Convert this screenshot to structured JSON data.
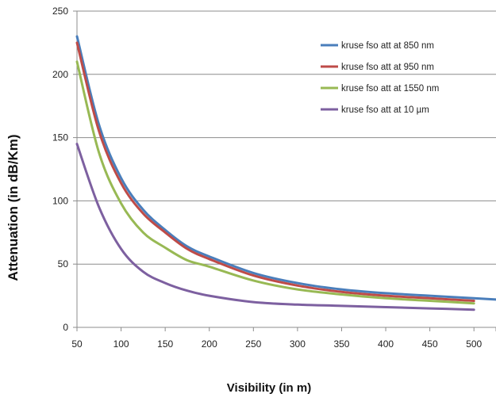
{
  "chart_data": {
    "type": "line",
    "title": "",
    "xlabel": "Visibility (in m)",
    "ylabel": "Attenuation (in dB/Km)",
    "xlim": [
      50,
      525
    ],
    "ylim": [
      0,
      250
    ],
    "x_ticks": [
      50,
      100,
      150,
      200,
      250,
      300,
      350,
      400,
      450,
      500
    ],
    "y_ticks": [
      0,
      50,
      100,
      150,
      200,
      250
    ],
    "grid": "horizontal",
    "legend_position": "top-right",
    "series": [
      {
        "name": "kruse fso att at 850 nm",
        "color": "#4a7ebb",
        "points": [
          [
            50,
            230
          ],
          [
            75,
            160
          ],
          [
            100,
            118
          ],
          [
            125,
            93
          ],
          [
            150,
            77
          ],
          [
            175,
            64
          ],
          [
            200,
            56
          ],
          [
            250,
            43
          ],
          [
            300,
            35
          ],
          [
            350,
            30
          ],
          [
            400,
            27
          ],
          [
            450,
            25
          ],
          [
            500,
            23
          ],
          [
            525,
            22
          ]
        ]
      },
      {
        "name": "kruse fso att at 950 nm",
        "color": "#be4b48",
        "points": [
          [
            50,
            225
          ],
          [
            75,
            155
          ],
          [
            100,
            114
          ],
          [
            125,
            90
          ],
          [
            150,
            75
          ],
          [
            175,
            62
          ],
          [
            200,
            54
          ],
          [
            250,
            41
          ],
          [
            300,
            33
          ],
          [
            350,
            28
          ],
          [
            400,
            25
          ],
          [
            450,
            23
          ],
          [
            500,
            21
          ]
        ]
      },
      {
        "name": "kruse fso att at 1550 nm",
        "color": "#98b954",
        "points": [
          [
            50,
            210
          ],
          [
            75,
            138
          ],
          [
            100,
            98
          ],
          [
            125,
            75
          ],
          [
            150,
            63
          ],
          [
            175,
            53
          ],
          [
            200,
            48
          ],
          [
            250,
            37
          ],
          [
            300,
            30
          ],
          [
            350,
            26
          ],
          [
            400,
            23
          ],
          [
            450,
            21
          ],
          [
            500,
            19
          ]
        ]
      },
      {
        "name": "kruse fso att at 10 µm",
        "color": "#7d60a0",
        "points": [
          [
            50,
            145
          ],
          [
            75,
            95
          ],
          [
            100,
            62
          ],
          [
            125,
            44
          ],
          [
            150,
            35
          ],
          [
            175,
            29
          ],
          [
            200,
            25
          ],
          [
            250,
            20
          ],
          [
            300,
            18
          ],
          [
            350,
            17
          ],
          [
            400,
            16
          ],
          [
            450,
            15
          ],
          [
            500,
            14
          ]
        ]
      }
    ]
  }
}
